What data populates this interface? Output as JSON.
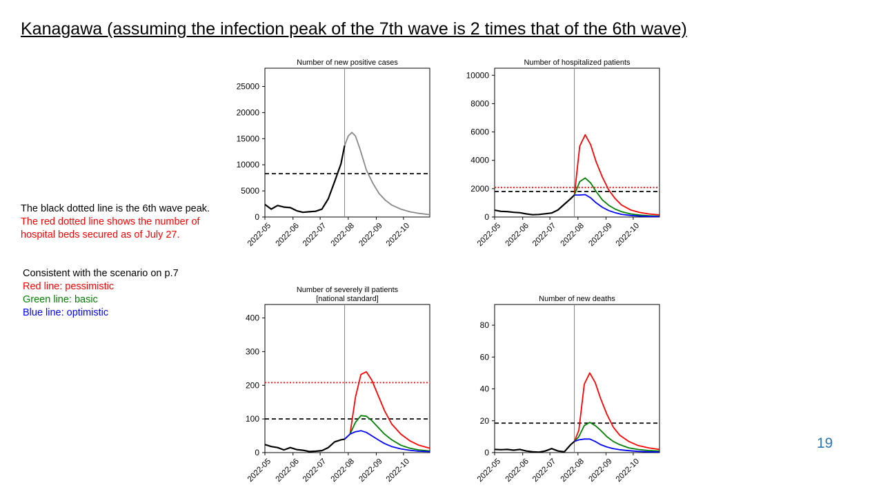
{
  "slide": {
    "title": "Kanagawa (assuming the infection peak of the 7th wave is 2 times that of the 6th wave)",
    "page_number": "19"
  },
  "notes": {
    "black_line": "The black dotted line is the 6th wave peak.",
    "red_line_1": "The red dotted line shows the number of",
    "red_line_2": "hospital beds secured as of July 27."
  },
  "legend_notes": {
    "header": "Consistent with the scenario on p.7",
    "red": "Red line: pessimistic",
    "green": "Green line: basic",
    "blue": "Blue line: optimistic"
  },
  "colors": {
    "observed": "#000000",
    "projection_single": "#888888",
    "pessimistic": "#ff0000",
    "basic": "#008000",
    "optimistic": "#0000ff",
    "sixth_wave_peak": "#000000",
    "hospital_beds": "#ff0000",
    "page_number": "#2e75b6"
  },
  "chart_data": [
    {
      "id": "cases",
      "type": "line",
      "title": [
        "Number of new positive cases"
      ],
      "x_ticks": [
        "2022-05",
        "2022-06",
        "2022-07",
        "2022-08",
        "2022-09",
        "2022-10"
      ],
      "x_tick_values": [
        0,
        31,
        61,
        92,
        123,
        153
      ],
      "x_range": [
        0,
        182
      ],
      "y_ticks": [
        0,
        5000,
        10000,
        15000,
        20000,
        25000
      ],
      "ylim": [
        0,
        28500
      ],
      "current_date_x": 88,
      "series": [
        {
          "role": "observed",
          "points": [
            [
              0,
              2400
            ],
            [
              7,
              1500
            ],
            [
              14,
              2200
            ],
            [
              21,
              1900
            ],
            [
              28,
              1800
            ],
            [
              35,
              1200
            ],
            [
              42,
              900
            ],
            [
              49,
              1000
            ],
            [
              56,
              1100
            ],
            [
              63,
              1500
            ],
            [
              70,
              3500
            ],
            [
              77,
              6800
            ],
            [
              84,
              10200
            ],
            [
              88,
              13700
            ]
          ]
        },
        {
          "role": "projection_single",
          "points": [
            [
              88,
              13700
            ],
            [
              92,
              15500
            ],
            [
              96,
              16200
            ],
            [
              100,
              15500
            ],
            [
              105,
              13000
            ],
            [
              112,
              9000
            ],
            [
              119,
              6500
            ],
            [
              126,
              4500
            ],
            [
              133,
              3200
            ],
            [
              140,
              2300
            ],
            [
              150,
              1500
            ],
            [
              160,
              1000
            ],
            [
              170,
              700
            ],
            [
              182,
              450
            ]
          ]
        }
      ],
      "reference_lines": [
        {
          "role": "sixth_wave_peak",
          "y": 8300
        }
      ]
    },
    {
      "id": "hospitalized",
      "type": "line",
      "title": [
        "Number of hospitalized patients"
      ],
      "x_ticks": [
        "2022-05",
        "2022-06",
        "2022-07",
        "2022-08",
        "2022-09",
        "2022-10"
      ],
      "x_tick_values": [
        0,
        31,
        61,
        92,
        123,
        153
      ],
      "x_range": [
        0,
        182
      ],
      "y_ticks": [
        0,
        2000,
        4000,
        6000,
        8000,
        10000
      ],
      "ylim": [
        0,
        10500
      ],
      "current_date_x": 88,
      "series": [
        {
          "role": "observed",
          "points": [
            [
              0,
              480
            ],
            [
              7,
              400
            ],
            [
              14,
              380
            ],
            [
              21,
              330
            ],
            [
              28,
              300
            ],
            [
              35,
              220
            ],
            [
              42,
              160
            ],
            [
              49,
              180
            ],
            [
              56,
              230
            ],
            [
              63,
              280
            ],
            [
              70,
              500
            ],
            [
              77,
              900
            ],
            [
              84,
              1300
            ],
            [
              88,
              1550
            ]
          ]
        },
        {
          "role": "pessimistic",
          "points": [
            [
              88,
              1550
            ],
            [
              94,
              5000
            ],
            [
              100,
              5800
            ],
            [
              106,
              5100
            ],
            [
              112,
              3900
            ],
            [
              119,
              2800
            ],
            [
              126,
              1900
            ],
            [
              133,
              1300
            ],
            [
              140,
              850
            ],
            [
              150,
              500
            ],
            [
              160,
              320
            ],
            [
              170,
              220
            ],
            [
              182,
              150
            ]
          ]
        },
        {
          "role": "basic",
          "points": [
            [
              88,
              1550
            ],
            [
              94,
              2500
            ],
            [
              100,
              2750
            ],
            [
              106,
              2400
            ],
            [
              112,
              1800
            ],
            [
              119,
              1200
            ],
            [
              126,
              820
            ],
            [
              133,
              560
            ],
            [
              140,
              380
            ],
            [
              150,
              220
            ],
            [
              160,
              140
            ],
            [
              170,
              90
            ],
            [
              182,
              60
            ]
          ]
        },
        {
          "role": "optimistic",
          "points": [
            [
              88,
              1550
            ],
            [
              94,
              1550
            ],
            [
              100,
              1580
            ],
            [
              106,
              1350
            ],
            [
              112,
              1000
            ],
            [
              119,
              680
            ],
            [
              126,
              450
            ],
            [
              133,
              300
            ],
            [
              140,
              190
            ],
            [
              150,
              110
            ],
            [
              160,
              70
            ],
            [
              170,
              45
            ],
            [
              182,
              30
            ]
          ]
        }
      ],
      "reference_lines": [
        {
          "role": "sixth_wave_peak",
          "y": 1800
        },
        {
          "role": "hospital_beds",
          "y": 2080
        }
      ]
    },
    {
      "id": "severe",
      "type": "line",
      "title": [
        "Number of severely ill patients",
        "[national standard]"
      ],
      "x_ticks": [
        "2022-05",
        "2022-06",
        "2022-07",
        "2022-08",
        "2022-09",
        "2022-10"
      ],
      "x_tick_values": [
        0,
        31,
        61,
        92,
        123,
        153
      ],
      "x_range": [
        0,
        182
      ],
      "y_ticks": [
        0,
        100,
        200,
        300,
        400
      ],
      "ylim": [
        0,
        440
      ],
      "current_date_x": 88,
      "series": [
        {
          "role": "observed",
          "points": [
            [
              0,
              24
            ],
            [
              7,
              18
            ],
            [
              14,
              15
            ],
            [
              21,
              8
            ],
            [
              28,
              15
            ],
            [
              35,
              9
            ],
            [
              42,
              7
            ],
            [
              49,
              3
            ],
            [
              56,
              4
            ],
            [
              63,
              6
            ],
            [
              70,
              15
            ],
            [
              77,
              32
            ],
            [
              84,
              38
            ],
            [
              88,
              40
            ]
          ]
        },
        {
          "role": "pessimistic",
          "points": [
            [
              88,
              40
            ],
            [
              94,
              55
            ],
            [
              100,
              165
            ],
            [
              106,
              232
            ],
            [
              112,
              240
            ],
            [
              118,
              215
            ],
            [
              125,
              170
            ],
            [
              132,
              125
            ],
            [
              140,
              85
            ],
            [
              150,
              55
            ],
            [
              160,
              35
            ],
            [
              170,
              22
            ],
            [
              182,
              13
            ]
          ]
        },
        {
          "role": "basic",
          "points": [
            [
              88,
              40
            ],
            [
              94,
              55
            ],
            [
              100,
              90
            ],
            [
              106,
              110
            ],
            [
              112,
              108
            ],
            [
              118,
              95
            ],
            [
              125,
              75
            ],
            [
              132,
              55
            ],
            [
              140,
              38
            ],
            [
              150,
              22
            ],
            [
              160,
              13
            ],
            [
              170,
              8
            ],
            [
              182,
              5
            ]
          ]
        },
        {
          "role": "optimistic",
          "points": [
            [
              88,
              40
            ],
            [
              94,
              55
            ],
            [
              100,
              62
            ],
            [
              106,
              65
            ],
            [
              112,
              60
            ],
            [
              118,
              50
            ],
            [
              125,
              38
            ],
            [
              132,
              27
            ],
            [
              140,
              18
            ],
            [
              150,
              11
            ],
            [
              160,
              7
            ],
            [
              170,
              4
            ],
            [
              182,
              3
            ]
          ]
        }
      ],
      "reference_lines": [
        {
          "role": "sixth_wave_peak",
          "y": 100
        },
        {
          "role": "hospital_beds",
          "y": 208
        }
      ]
    },
    {
      "id": "deaths",
      "type": "line",
      "title": [
        "Number of new deaths"
      ],
      "x_ticks": [
        "2022-05",
        "2022-06",
        "2022-07",
        "2022-08",
        "2022-09",
        "2022-10"
      ],
      "x_tick_values": [
        0,
        31,
        61,
        92,
        123,
        153
      ],
      "x_range": [
        0,
        182
      ],
      "y_ticks": [
        0,
        20,
        40,
        60,
        80
      ],
      "ylim": [
        0,
        93
      ],
      "current_date_x": 88,
      "series": [
        {
          "role": "observed",
          "points": [
            [
              0,
              2
            ],
            [
              7,
              1.8
            ],
            [
              14,
              2
            ],
            [
              21,
              1.5
            ],
            [
              28,
              2
            ],
            [
              35,
              1
            ],
            [
              42,
              0.5
            ],
            [
              49,
              0.3
            ],
            [
              56,
              1
            ],
            [
              63,
              2.5
            ],
            [
              70,
              1
            ],
            [
              77,
              0.5
            ],
            [
              84,
              5
            ],
            [
              88,
              7
            ]
          ]
        },
        {
          "role": "pessimistic",
          "points": [
            [
              88,
              7
            ],
            [
              93,
              14
            ],
            [
              99,
              43
            ],
            [
              105,
              50
            ],
            [
              111,
              44
            ],
            [
              117,
              34
            ],
            [
              124,
              24
            ],
            [
              131,
              16
            ],
            [
              138,
              11
            ],
            [
              148,
              7
            ],
            [
              158,
              4.5
            ],
            [
              170,
              3
            ],
            [
              182,
              2
            ]
          ]
        },
        {
          "role": "basic",
          "points": [
            [
              88,
              7
            ],
            [
              93,
              10
            ],
            [
              99,
              17
            ],
            [
              105,
              19
            ],
            [
              111,
              17
            ],
            [
              117,
              14
            ],
            [
              124,
              10
            ],
            [
              131,
              7
            ],
            [
              138,
              5
            ],
            [
              148,
              3
            ],
            [
              158,
              2
            ],
            [
              170,
              1.3
            ],
            [
              182,
              1
            ]
          ]
        },
        {
          "role": "optimistic",
          "points": [
            [
              88,
              7
            ],
            [
              93,
              8
            ],
            [
              99,
              8.5
            ],
            [
              105,
              8.5
            ],
            [
              111,
              7
            ],
            [
              117,
              5
            ],
            [
              124,
              3.5
            ],
            [
              131,
              2.5
            ],
            [
              138,
              1.8
            ],
            [
              148,
              1.2
            ],
            [
              158,
              0.8
            ],
            [
              170,
              0.5
            ],
            [
              182,
              0.4
            ]
          ]
        }
      ],
      "reference_lines": [
        {
          "role": "sixth_wave_peak",
          "y": 18.5
        }
      ]
    }
  ]
}
